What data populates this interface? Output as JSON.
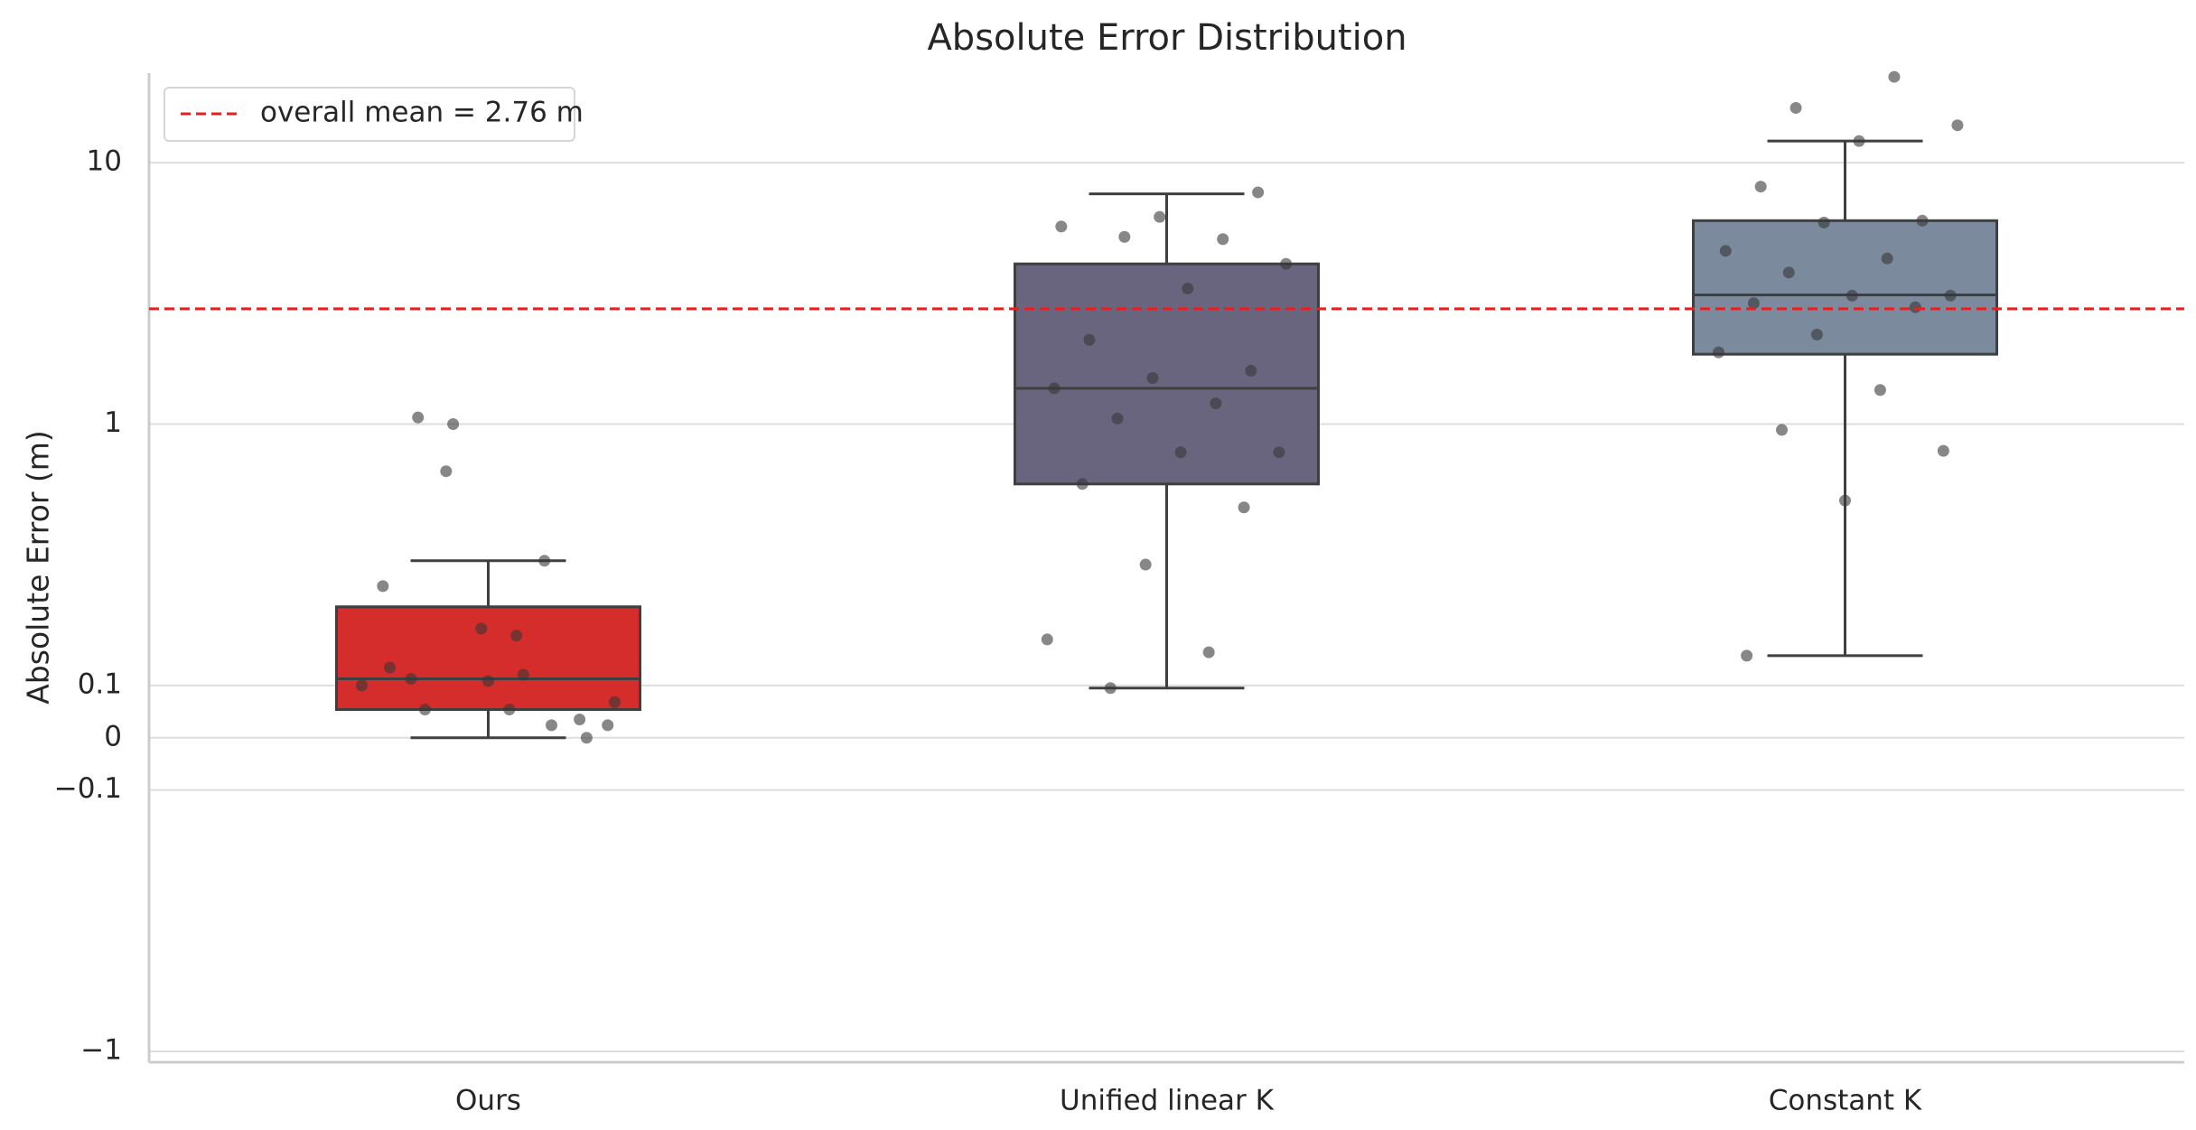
{
  "chart_data": {
    "type": "box",
    "title": "Absolute Error Distribution",
    "ylabel": "Absolute Error (m)",
    "yscale": "symlog",
    "grid": true,
    "legend": "upper left",
    "ylim": [
      -1.1,
      22
    ],
    "yticks": [
      {
        "value": -1,
        "label": "−1"
      },
      {
        "value": -0.1,
        "label": "−0.1"
      },
      0,
      0.1,
      1,
      10
    ],
    "mean_line": {
      "value": 2.76,
      "label": "overall mean = 2.76 m",
      "color": "#ee1c1c"
    },
    "boxes": [
      {
        "name": "Ours",
        "color": "#d42d2b",
        "whislo": 0,
        "q1": 0.054,
        "median": 0.106,
        "q3": 0.2,
        "whishi": 0.3,
        "points": [
          0.1,
          0.11,
          0.054,
          0,
          0.104,
          0.117,
          0.024,
          1.0,
          0.068,
          0.155,
          1.06,
          0.035,
          0.165,
          0.24,
          0.3,
          0.66,
          0.024,
          0.054,
          0.106
        ]
      },
      {
        "name": "Unified linear K",
        "color": "#6a657e",
        "whislo": 0.095,
        "q1": 0.59,
        "median": 1.37,
        "q3": 4.1,
        "whishi": 7.6,
        "points": [
          7.7,
          6.2,
          5.7,
          5.1,
          5.2,
          4.1,
          3.3,
          2.1,
          1.6,
          1.5,
          1.37,
          1.2,
          1.05,
          0.78,
          0.78,
          0.59,
          0.48,
          0.29,
          0.15,
          0.134,
          0.095
        ]
      },
      {
        "name": "Constant K",
        "color": "#7c8a9e",
        "whislo": 0.13,
        "q1": 1.85,
        "median": 3.12,
        "q3": 6.0,
        "whishi": 12.1,
        "points": [
          21.3,
          16.2,
          13.9,
          12.1,
          8.1,
          6.0,
          5.9,
          4.6,
          4.3,
          3.8,
          3.1,
          3.1,
          2.9,
          2.8,
          2.2,
          1.88,
          1.35,
          0.95,
          0.79,
          0.51,
          0.13
        ]
      }
    ]
  }
}
